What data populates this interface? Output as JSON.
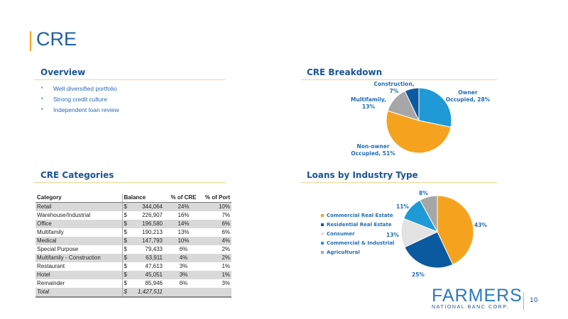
{
  "slide": {
    "title": "CRE",
    "page_number": "10"
  },
  "overview": {
    "heading": "Overview",
    "bullets": [
      "Well diversified portfolio",
      "Strong credit culture",
      "Independent loan review"
    ]
  },
  "cre_categories": {
    "heading": "CRE Categories",
    "columns": [
      "Category",
      "Balance",
      "% of CRE",
      "% of Port"
    ],
    "rows": [
      [
        "Retail",
        "$",
        "344,064",
        "24%",
        "10%"
      ],
      [
        "Warehouse/Industrial",
        "$",
        "226,907",
        "16%",
        "7%"
      ],
      [
        "Office",
        "$",
        "196,580",
        "14%",
        "6%"
      ],
      [
        "Multifamily",
        "$",
        "190,213",
        "13%",
        "6%"
      ],
      [
        "Medical",
        "$",
        "147,793",
        "10%",
        "4%"
      ],
      [
        "Special Purpose",
        "$",
        "79,433",
        "6%",
        "2%"
      ],
      [
        "Multifamily - Construction",
        "$",
        "63,911",
        "4%",
        "2%"
      ],
      [
        "Restaurant",
        "$",
        "47,613",
        "3%",
        "1%"
      ],
      [
        "Hotel",
        "$",
        "45,051",
        "3%",
        "1%"
      ],
      [
        "Remainder",
        "$",
        "85,946",
        "6%",
        "3%"
      ]
    ],
    "total": [
      "Total",
      "$",
      "1,427,511",
      "",
      ""
    ]
  },
  "logo": {
    "name": "FARMERS",
    "subtitle": "NATIONAL BANC CORP."
  },
  "chart_data": [
    {
      "type": "pie",
      "title": "CRE Breakdown",
      "categories": [
        "Owner Occupied",
        "Non-owner Occupied",
        "Multifamily",
        "Construction"
      ],
      "values": [
        28,
        51,
        13,
        7
      ],
      "labels": [
        "Owner Occupied, 28%",
        "Non-owner Occupied, 51%",
        "Multifamily, 13%",
        "Construction, 7%"
      ],
      "colors": [
        "#1f9ad6",
        "#f5a31f",
        "#a6a6a6",
        "#0b5aa0"
      ]
    },
    {
      "type": "pie",
      "title": "Loans by Industry Type",
      "categories": [
        "Commercial Real Estate",
        "Residential Real Estate",
        "Consumer",
        "Commercial & Industrial",
        "Agricultural"
      ],
      "values": [
        43,
        25,
        13,
        11,
        8
      ],
      "labels": [
        "43%",
        "25%",
        "13%",
        "11%",
        "8%"
      ],
      "colors": [
        "#f5a31f",
        "#0b5aa0",
        "#e3e3e3",
        "#1f9ad6",
        "#a6a6a6"
      ],
      "legend": "left"
    }
  ]
}
